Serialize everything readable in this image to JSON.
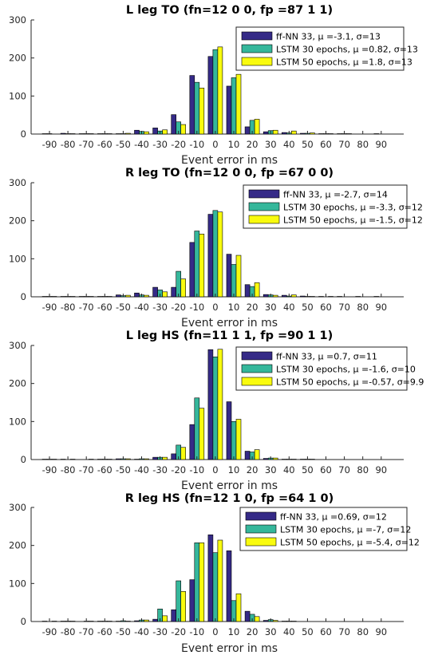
{
  "colors": {
    "series": [
      "#352a87",
      "#35b79b",
      "#f9fb0e"
    ],
    "axis": "#262626",
    "background": "#ffffff"
  },
  "chart_data": [
    {
      "type": "bar",
      "title": "L leg TO (fn=12   0   0, fp =87   1   1)",
      "xlabel": "Event error in ms",
      "ylabel": "",
      "categories": [
        -90,
        -80,
        -70,
        -60,
        -50,
        -40,
        -30,
        -20,
        -10,
        0,
        10,
        20,
        30,
        40,
        50,
        60,
        70,
        80,
        90
      ],
      "ylim": [
        0,
        300
      ],
      "yticks": [
        0,
        100,
        200,
        300
      ],
      "legend_position": "top-right",
      "grid": false,
      "series": [
        {
          "name": "ff-NN 33, μ =-3.1, σ=13",
          "values": [
            1,
            2,
            1,
            1,
            1,
            10,
            16,
            51,
            154,
            204,
            126,
            19,
            6,
            4,
            2,
            1,
            1,
            0,
            1
          ]
        },
        {
          "name": "LSTM 30 epochs, μ =0.82, σ=13",
          "values": [
            1,
            1,
            1,
            1,
            1,
            7,
            8,
            32,
            136,
            222,
            148,
            36,
            9,
            3,
            2,
            1,
            1,
            0,
            0
          ]
        },
        {
          "name": "LSTM 50 epochs, μ =1.8, σ=13",
          "values": [
            0,
            1,
            1,
            1,
            2,
            6,
            11,
            25,
            121,
            229,
            157,
            39,
            10,
            8,
            3,
            1,
            1,
            0,
            0
          ]
        }
      ]
    },
    {
      "type": "bar",
      "title": "R leg TO (fn=12   0   0, fp =67   0   0)",
      "xlabel": "Event error in ms",
      "ylabel": "",
      "categories": [
        -90,
        -80,
        -70,
        -60,
        -50,
        -40,
        -30,
        -20,
        -10,
        0,
        10,
        20,
        30,
        40,
        50,
        60,
        70,
        80,
        90
      ],
      "ylim": [
        0,
        300
      ],
      "yticks": [
        0,
        100,
        200,
        300
      ],
      "legend_position": "top-right",
      "grid": false,
      "series": [
        {
          "name": "ff-NN 33, μ =-2.7, σ=14",
          "values": [
            1,
            1,
            1,
            1,
            5,
            10,
            25,
            25,
            143,
            217,
            112,
            32,
            6,
            4,
            2,
            1,
            1,
            1,
            1
          ]
        },
        {
          "name": "LSTM 30 epochs, μ =-3.3, σ=12",
          "values": [
            1,
            1,
            1,
            1,
            3,
            5,
            18,
            67,
            173,
            227,
            85,
            27,
            5,
            2,
            1,
            0,
            0,
            0,
            0
          ]
        },
        {
          "name": "LSTM 50 epochs, μ =-1.5, σ=12",
          "values": [
            1,
            1,
            1,
            1,
            4,
            4,
            13,
            47,
            165,
            223,
            109,
            37,
            4,
            5,
            1,
            1,
            0,
            0,
            0
          ]
        }
      ]
    },
    {
      "type": "bar",
      "title": "L leg HS (fn=11   1   1, fp =90   1   1)",
      "xlabel": "Event error in ms",
      "ylabel": "",
      "categories": [
        -90,
        -80,
        -70,
        -60,
        -50,
        -40,
        -30,
        -20,
        -10,
        0,
        10,
        20,
        30,
        40,
        50,
        60,
        70,
        80,
        90
      ],
      "ylim": [
        0,
        300
      ],
      "yticks": [
        0,
        100,
        200,
        300
      ],
      "legend_position": "top-right",
      "grid": false,
      "series": [
        {
          "name": "ff-NN 33, μ =0.7, σ=11",
          "values": [
            1,
            1,
            0,
            1,
            2,
            1,
            6,
            15,
            92,
            289,
            152,
            22,
            3,
            1,
            1,
            0,
            0,
            0,
            0
          ]
        },
        {
          "name": "LSTM 30 epochs, μ =-1.6, σ=10",
          "values": [
            1,
            0,
            0,
            1,
            2,
            2,
            6,
            38,
            162,
            270,
            100,
            20,
            4,
            1,
            1,
            0,
            0,
            0,
            0
          ]
        },
        {
          "name": "LSTM 50 epochs, μ =-0.57, σ=9.9",
          "values": [
            1,
            1,
            1,
            1,
            2,
            2,
            6,
            32,
            135,
            290,
            106,
            26,
            4,
            1,
            1,
            0,
            0,
            0,
            0
          ]
        }
      ]
    },
    {
      "type": "bar",
      "title": "R leg HS (fn=12   1   0, fp =64   1   0)",
      "xlabel": "Event error in ms",
      "ylabel": "",
      "categories": [
        -90,
        -80,
        -70,
        -60,
        -50,
        -40,
        -30,
        -20,
        -10,
        0,
        10,
        20,
        30,
        40,
        50,
        60,
        70,
        80,
        90
      ],
      "ylim": [
        0,
        300
      ],
      "yticks": [
        0,
        100,
        200,
        300
      ],
      "legend_position": "top-right",
      "grid": false,
      "series": [
        {
          "name": "ff-NN 33, μ =0.69, σ=12",
          "values": [
            1,
            1,
            0,
            1,
            1,
            2,
            6,
            31,
            110,
            228,
            186,
            27,
            3,
            1,
            0,
            0,
            0,
            0,
            0
          ]
        },
        {
          "name": "LSTM 30 epochs, μ =-7, σ=12",
          "values": [
            0,
            1,
            1,
            1,
            2,
            4,
            33,
            107,
            207,
            181,
            55,
            19,
            5,
            1,
            0,
            0,
            0,
            0,
            0
          ]
        },
        {
          "name": "LSTM 50 epochs, μ =-5.4, σ=12",
          "values": [
            1,
            1,
            1,
            1,
            1,
            4,
            15,
            79,
            207,
            214,
            73,
            13,
            3,
            1,
            0,
            0,
            0,
            0,
            0
          ]
        }
      ]
    }
  ]
}
